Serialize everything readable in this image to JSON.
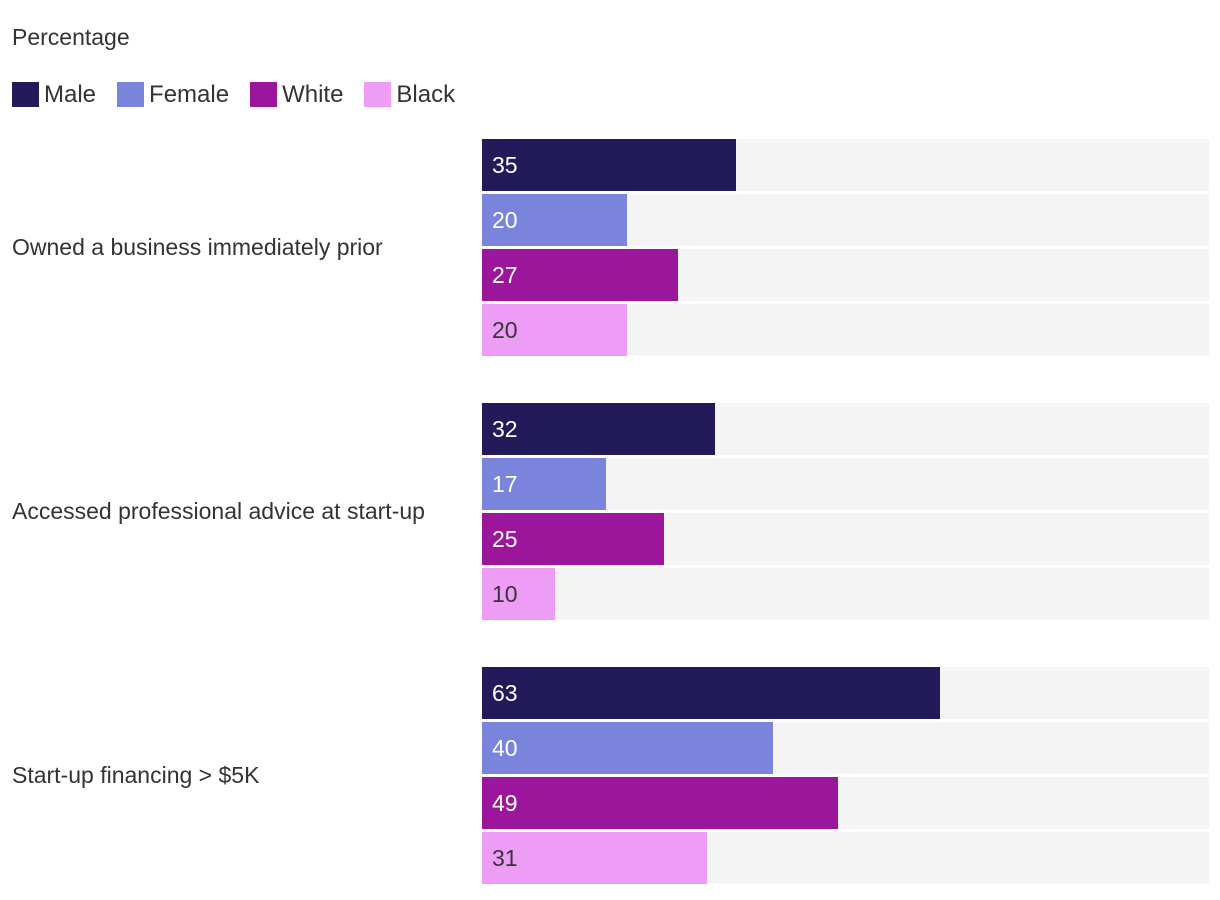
{
  "title": "Percentage",
  "legend": [
    {
      "label": "Male",
      "color": "#221a59"
    },
    {
      "label": "Female",
      "color": "#7b84dd"
    },
    {
      "label": "White",
      "color": "#9c169c"
    },
    {
      "label": "Black",
      "color": "#ed9df6"
    }
  ],
  "colors": {
    "track": "#f4f4f4",
    "text": "#333333",
    "value_on_dark": "#ffffff",
    "value_on_light": "#363636"
  },
  "chart_data": {
    "type": "bar",
    "orientation": "horizontal",
    "title": "Percentage",
    "xlabel": "",
    "ylabel": "",
    "xlim": [
      0,
      100
    ],
    "grid": false,
    "legend_position": "top",
    "categories": [
      "Owned a business immediately prior",
      "Accessed professional advice at start-up",
      "Start-up financing > $5K"
    ],
    "series": [
      {
        "name": "Male",
        "color": "#221a59",
        "value_color": "#ffffff",
        "values": [
          35,
          32,
          63
        ]
      },
      {
        "name": "Female",
        "color": "#7b84dd",
        "value_color": "#ffffff",
        "values": [
          20,
          17,
          40
        ]
      },
      {
        "name": "White",
        "color": "#9c169c",
        "value_color": "#ffffff",
        "values": [
          27,
          25,
          49
        ]
      },
      {
        "name": "Black",
        "color": "#ed9df6",
        "value_color": "#363636",
        "values": [
          20,
          10,
          31
        ]
      }
    ]
  }
}
